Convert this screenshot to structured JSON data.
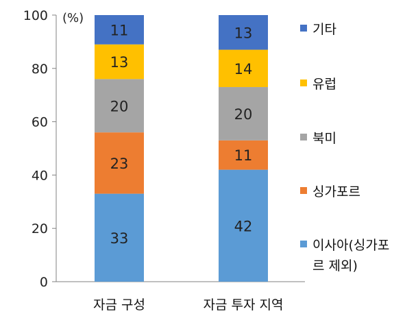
{
  "chart_data": {
    "type": "bar",
    "stacked": true,
    "unit_label": "(%)",
    "categories": [
      "자금 구성",
      "자금 투자 지역"
    ],
    "ylim": [
      0,
      100
    ],
    "yticks": [
      0,
      20,
      40,
      60,
      80,
      100
    ],
    "series": [
      {
        "name": "이사아(싱가포르 제외)",
        "values": [
          33,
          42
        ],
        "color": "#5B9BD5"
      },
      {
        "name": "싱가포르",
        "values": [
          23,
          11
        ],
        "color": "#ED7D31"
      },
      {
        "name": "북미",
        "values": [
          20,
          20
        ],
        "color": "#A5A5A5"
      },
      {
        "name": "유럽",
        "values": [
          13,
          14
        ],
        "color": "#FFC000"
      },
      {
        "name": "기타",
        "values": [
          11,
          13
        ],
        "color": "#4472C4"
      }
    ],
    "legend": {
      "position": "right",
      "order": [
        "기타",
        "유럽",
        "북미",
        "싱가포르",
        "이사아(싱가포르 제외)"
      ]
    },
    "grid": false
  }
}
